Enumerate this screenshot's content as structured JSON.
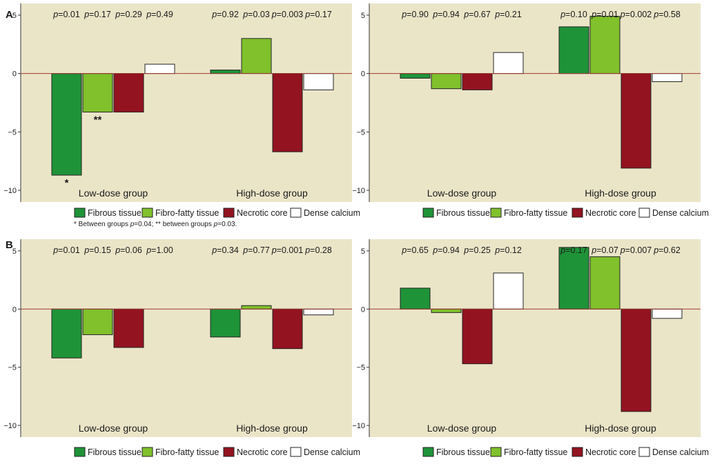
{
  "panel_labels": {
    "A": "A",
    "B": "B"
  },
  "footnote": "* Between groups p=0.04; ** between groups p=0.03.",
  "legend": [
    {
      "label": "Fibrous tissue",
      "color": "#1f9338"
    },
    {
      "label": "Fibro-fatty tissue",
      "color": "#80c12c"
    },
    {
      "label": "Necrotic core",
      "color": "#931320"
    },
    {
      "label": "Dense calcium",
      "color": "#ffffff"
    }
  ],
  "colors": {
    "background": "#ebe5c8",
    "zero_line": "#a0392f",
    "axis": "#333333"
  },
  "chart_data": [
    {
      "type": "bar",
      "ylim": [
        -11,
        6
      ],
      "yticks": [
        5,
        0,
        -5,
        -10
      ],
      "groups": [
        "Low-dose group",
        "High-dose group"
      ],
      "series_names": [
        "Fibrous tissue",
        "Fibro-fatty tissue",
        "Necrotic core",
        "Dense calcium"
      ],
      "values": [
        [
          -8.7,
          -3.3,
          -3.3,
          0.8
        ],
        [
          0.3,
          3.0,
          -6.7,
          -1.4
        ]
      ],
      "p_values": [
        [
          "p=0.01",
          "p=0.17",
          "p=0.29",
          "p=0.49"
        ],
        [
          "p=0.92",
          "p=0.03",
          "p=0.003",
          "p=0.17"
        ]
      ],
      "annotations": [
        {
          "group": 0,
          "bar": 0,
          "text": "*"
        },
        {
          "group": 0,
          "bar": 1,
          "text": "**"
        }
      ]
    },
    {
      "type": "bar",
      "ylim": [
        -11,
        6
      ],
      "yticks": [
        5,
        0,
        -5,
        -10
      ],
      "groups": [
        "Low-dose group",
        "High-dose group"
      ],
      "series_names": [
        "Fibrous tissue",
        "Fibro-fatty tissue",
        "Necrotic core",
        "Dense calcium"
      ],
      "values": [
        [
          -0.4,
          -1.3,
          -1.4,
          1.8
        ],
        [
          4.0,
          4.9,
          -8.1,
          -0.7
        ]
      ],
      "p_values": [
        [
          "p=0.90",
          "p=0.94",
          "p=0.67",
          "p=0.21"
        ],
        [
          "p=0.10",
          "p=0.01",
          "p=0.002",
          "p=0.58"
        ]
      ],
      "annotations": []
    },
    {
      "type": "bar",
      "ylim": [
        -11,
        6
      ],
      "yticks": [
        5,
        0,
        -5,
        -10
      ],
      "groups": [
        "Low-dose group",
        "High-dose group"
      ],
      "series_names": [
        "Fibrous tissue",
        "Fibro-fatty tissue",
        "Necrotic core",
        "Dense calcium"
      ],
      "values": [
        [
          -4.2,
          -2.2,
          -3.3,
          0
        ],
        [
          -2.4,
          0.3,
          -3.4,
          -0.5
        ]
      ],
      "p_values": [
        [
          "p=0.01",
          "p=0.15",
          "p=0.06",
          "p=1.00"
        ],
        [
          "p=0.34",
          "p=0.77",
          "p=0.001",
          "p=0.28"
        ]
      ],
      "annotations": []
    },
    {
      "type": "bar",
      "ylim": [
        -11,
        6
      ],
      "yticks": [
        5,
        0,
        -5,
        -10
      ],
      "groups": [
        "Low-dose group",
        "High-dose group"
      ],
      "series_names": [
        "Fibrous tissue",
        "Fibro-fatty tissue",
        "Necrotic core",
        "Dense calcium"
      ],
      "values": [
        [
          1.8,
          -0.3,
          -4.7,
          3.1
        ],
        [
          5.3,
          4.5,
          -8.8,
          -0.8
        ]
      ],
      "p_values": [
        [
          "p=0.65",
          "p=0.94",
          "p=0.25",
          "p=0.12"
        ],
        [
          "p=0.17",
          "p=0.07",
          "p=0.007",
          "p=0.62"
        ]
      ],
      "annotations": []
    }
  ]
}
